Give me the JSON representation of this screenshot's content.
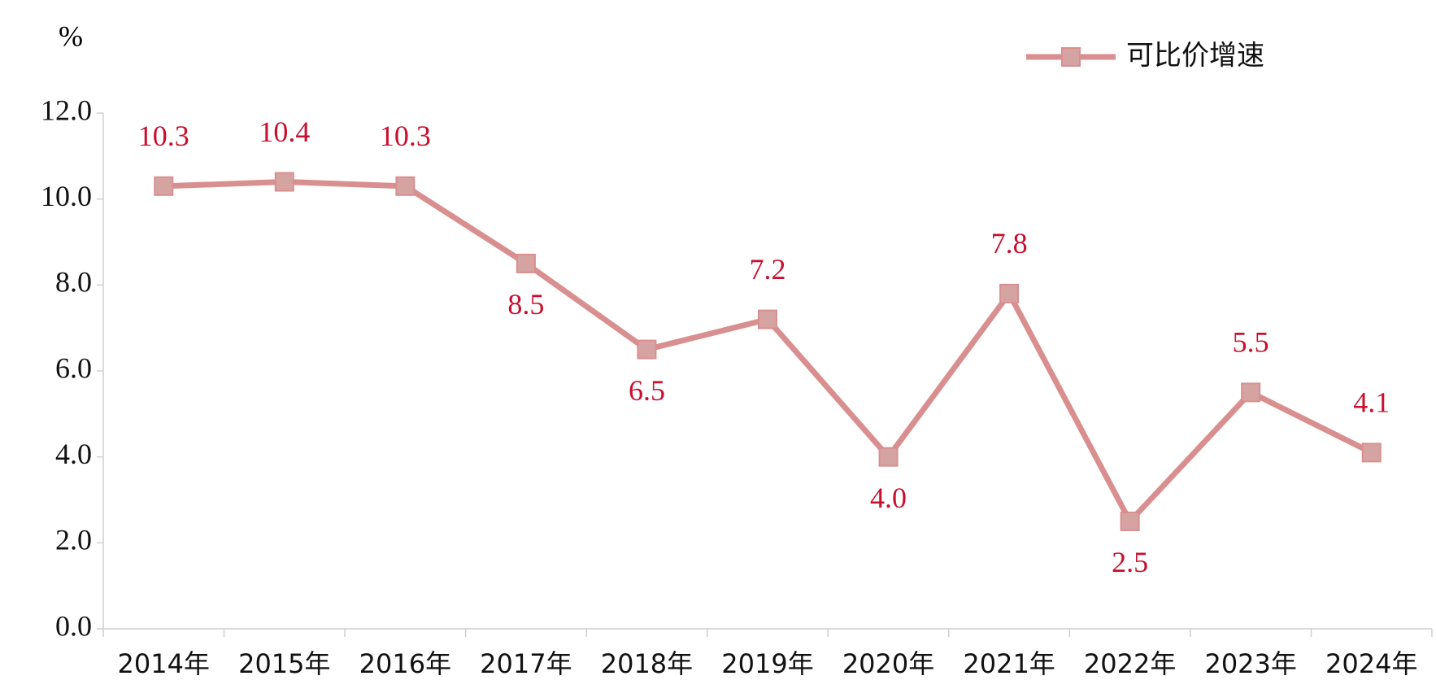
{
  "chart_data": {
    "type": "line",
    "y_unit": "%",
    "categories": [
      "2014年",
      "2015年",
      "2016年",
      "2017年",
      "2018年",
      "2019年",
      "2020年",
      "2021年",
      "2022年",
      "2023年",
      "2024年"
    ],
    "series": [
      {
        "name": "可比价增速",
        "color": "#d98f8f",
        "marker_color": "#d6a3a3",
        "values": [
          10.3,
          10.4,
          10.3,
          8.5,
          6.5,
          7.2,
          4.0,
          7.8,
          2.5,
          5.5,
          4.1
        ],
        "value_labels": [
          "10.3",
          "10.4",
          "10.3",
          "8.5",
          "6.5",
          "7.2",
          "4.0",
          "7.8",
          "2.5",
          "5.5",
          "4.1"
        ],
        "label_color": "#c8102e"
      }
    ],
    "ylim": [
      0,
      12
    ],
    "yticks": [
      {
        "value": 0,
        "label": "0.0"
      },
      {
        "value": 2,
        "label": "2.0"
      },
      {
        "value": 4,
        "label": "4.0"
      },
      {
        "value": 6,
        "label": "6.0"
      },
      {
        "value": 8,
        "label": "8.0"
      },
      {
        "value": 10,
        "label": "10.0"
      },
      {
        "value": 12,
        "label": "12.0"
      }
    ],
    "grid": false,
    "legend": "top-right"
  }
}
